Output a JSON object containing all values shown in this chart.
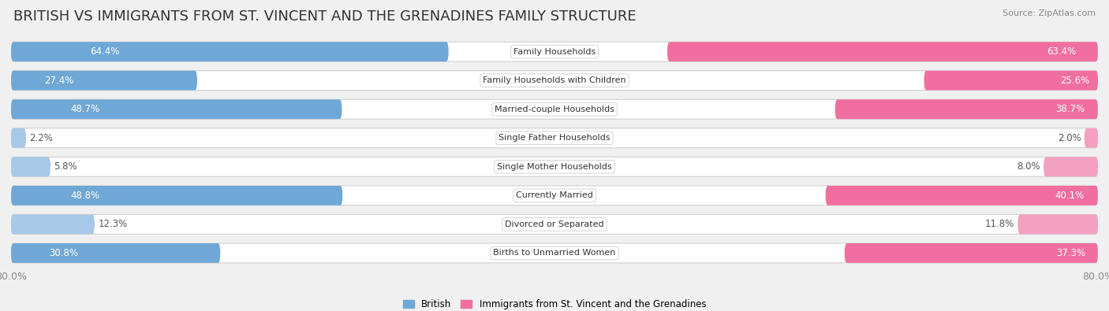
{
  "title": "BRITISH VS IMMIGRANTS FROM ST. VINCENT AND THE GRENADINES FAMILY STRUCTURE",
  "source": "Source: ZipAtlas.com",
  "categories": [
    "Family Households",
    "Family Households with Children",
    "Married-couple Households",
    "Single Father Households",
    "Single Mother Households",
    "Currently Married",
    "Divorced or Separated",
    "Births to Unmarried Women"
  ],
  "british_values": [
    64.4,
    27.4,
    48.7,
    2.2,
    5.8,
    48.8,
    12.3,
    30.8
  ],
  "immigrant_values": [
    63.4,
    25.6,
    38.7,
    2.0,
    8.0,
    40.1,
    11.8,
    37.3
  ],
  "british_color_large": "#6fa8d6",
  "british_color_small": "#a8c8e8",
  "immigrant_color_large": "#f06fa0",
  "immigrant_color_small": "#f4a0c0",
  "axis_max": 80.0,
  "background_color": "#f0f0f0",
  "row_bg_color": "#ffffff",
  "row_border_color": "#d0d0d0",
  "bar_height": 0.68,
  "title_fontsize": 13,
  "label_fontsize": 8.5,
  "tick_fontsize": 9,
  "large_threshold": 20
}
